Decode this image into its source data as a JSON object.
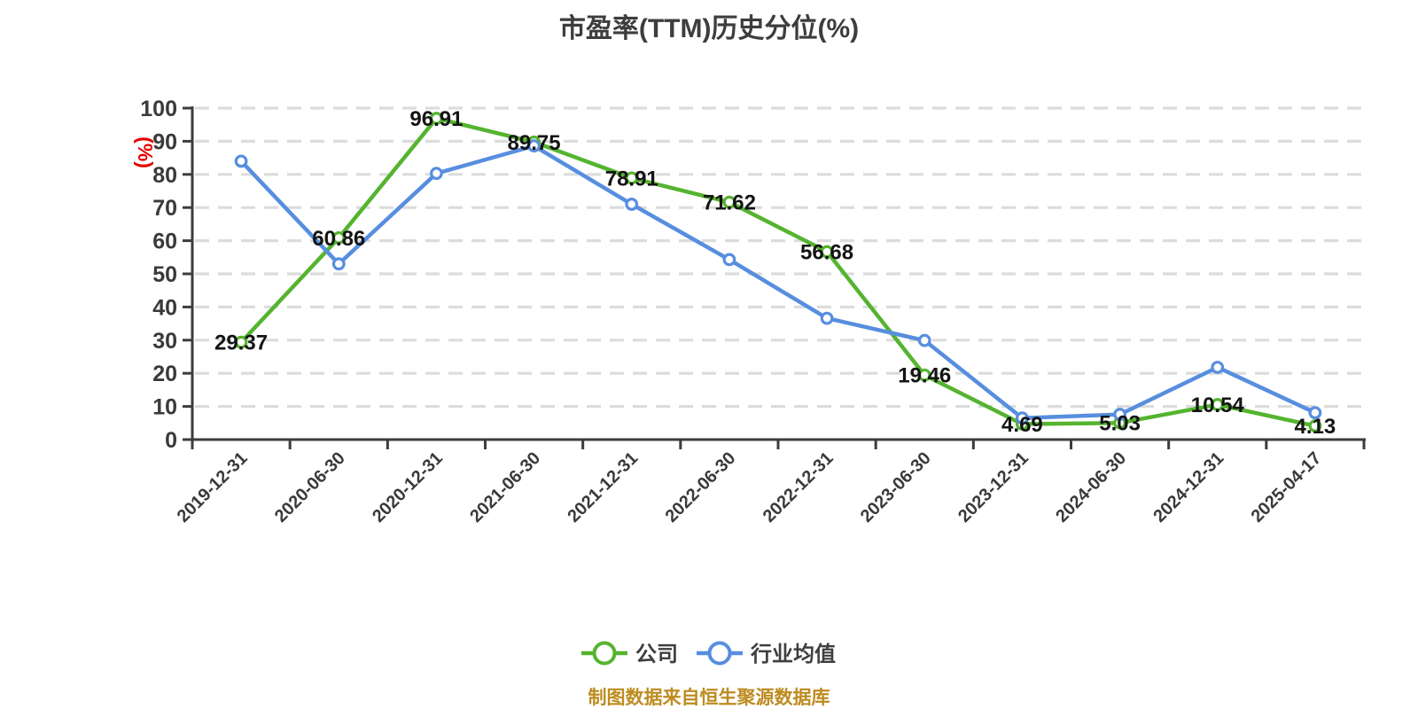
{
  "title": "市盈率(TTM)历史分位(%)",
  "y_axis_name": "(%)",
  "footer": "制图数据来自恒生聚源数据库",
  "colors": {
    "company": "#55b42f",
    "industry_average": "#578edf",
    "y_axis_name": "#e60000",
    "footer": "#bd8c20",
    "axis": "#3c3c3c",
    "grid": "#dcdcdc",
    "marker_fill": "#ffffff"
  },
  "chart_data": {
    "type": "line",
    "title": "市盈率(TTM)历史分位(%)",
    "xlabel": "",
    "ylabel": "(%)",
    "ylim": [
      0,
      100
    ],
    "y_ticks": [
      0,
      10,
      20,
      30,
      40,
      50,
      60,
      70,
      80,
      90,
      100
    ],
    "grid": "horizontal-dashed",
    "legend_position": "bottom",
    "categories": [
      "2019-12-31",
      "2020-06-30",
      "2020-12-31",
      "2021-06-30",
      "2021-12-31",
      "2022-06-30",
      "2022-12-31",
      "2023-06-30",
      "2023-12-31",
      "2024-06-30",
      "2024-12-31",
      "2025-04-17"
    ],
    "series": [
      {
        "id": "company",
        "name": "公司",
        "color": "#55b42f",
        "point_labels": true,
        "values": [
          29.37,
          60.86,
          96.91,
          89.75,
          78.91,
          71.62,
          56.68,
          19.46,
          4.69,
          5.03,
          10.54,
          4.13
        ]
      },
      {
        "id": "industry-average",
        "name": "行业均值",
        "color": "#578edf",
        "point_labels": false,
        "values": [
          84.0,
          53.0,
          80.3,
          88.6,
          71.0,
          54.3,
          36.6,
          29.9,
          6.5,
          7.6,
          21.8,
          8.1
        ]
      }
    ]
  }
}
